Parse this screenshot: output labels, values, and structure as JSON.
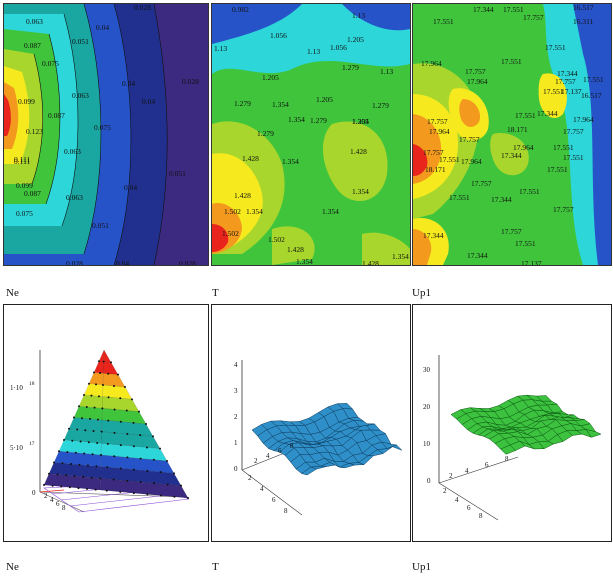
{
  "top_row": {
    "panels": [
      {
        "caption": "Ne",
        "labels": [
          "0.028",
          "0.063",
          "0.04",
          "0.087",
          "0.051",
          "0.075",
          "0.063",
          "0.04",
          "0.099",
          "0.087",
          "0.075",
          "0.063",
          "0.028",
          "0.04",
          "0.051",
          "0.111",
          "0.123",
          "0.111",
          "0.099",
          "0.087",
          "0.075",
          "0.063",
          "0.051",
          "0.04",
          "0.04",
          "0.028",
          "0.028"
        ]
      },
      {
        "caption": "T",
        "labels": [
          "0.982",
          "1.13",
          "1.056",
          "1.13",
          "1.056",
          "1.13",
          "1.205",
          "1.13",
          "1.205",
          "1.279",
          "1.279",
          "1.205",
          "1.279",
          "1.354",
          "1.279",
          "1.205",
          "1.279",
          "1.354",
          "1.354",
          "1.428",
          "1.354",
          "1.428",
          "1.354",
          "1.428",
          "1.502",
          "1.354",
          "1.354",
          "1.502",
          "1.502",
          "1.428",
          "1.354",
          "1.428",
          "1.354"
        ]
      },
      {
        "caption": "Up1",
        "labels": [
          "17.344",
          "17.551",
          "17.757",
          "17.551",
          "16.517",
          "16.311",
          "17.551",
          "17.964",
          "17.757",
          "17.551",
          "17.964",
          "17.757",
          "17.551",
          "17.344",
          "17.137",
          "16.517",
          "17.551",
          "17.344",
          "17.551",
          "17.757",
          "17.964",
          "18.171",
          "17.757",
          "17.964",
          "17.757",
          "17.551",
          "17.964",
          "17.344",
          "18.171",
          "17.757",
          "17.964",
          "17.551",
          "17.551",
          "17.757",
          "17.551",
          "17.551",
          "17.757",
          "17.344",
          "17.551",
          "17.344",
          "17.757",
          "17.551",
          "17.344",
          "17.137"
        ]
      }
    ]
  },
  "bottom_row": {
    "panels": [
      {
        "caption": "Ne",
        "axis_ticks_z": [
          "1·10",
          "18",
          "5·10",
          "17",
          "0"
        ],
        "axis_ticks_x": [
          "2",
          "4",
          "6",
          "8"
        ]
      },
      {
        "caption": "T",
        "axis_ticks_z": [
          "4",
          "3",
          "2",
          "1",
          "0"
        ],
        "axis_ticks_x": [
          "2",
          "4",
          "6",
          "8"
        ],
        "axis_ticks_y": [
          "2",
          "4",
          "6",
          "8"
        ]
      },
      {
        "caption": "Up1",
        "axis_ticks_z": [
          "30",
          "20",
          "10",
          "0"
        ],
        "axis_ticks_x": [
          "2",
          "4",
          "6",
          "8"
        ],
        "axis_ticks_y": [
          "2",
          "4",
          "6",
          "8"
        ]
      }
    ]
  },
  "colors": {
    "red": "#e8241c",
    "orange": "#f39a1e",
    "yellow": "#f6ea1f",
    "lime": "#a8d62c",
    "green": "#3fc43c",
    "teal": "#1aa7a2",
    "cyan": "#2dd6d9",
    "blue": "#2753c8",
    "navy": "#21308f",
    "purple": "#3b2a7f",
    "surface_blue": "#2f8fc8",
    "surface_green": "#3cc23e"
  }
}
